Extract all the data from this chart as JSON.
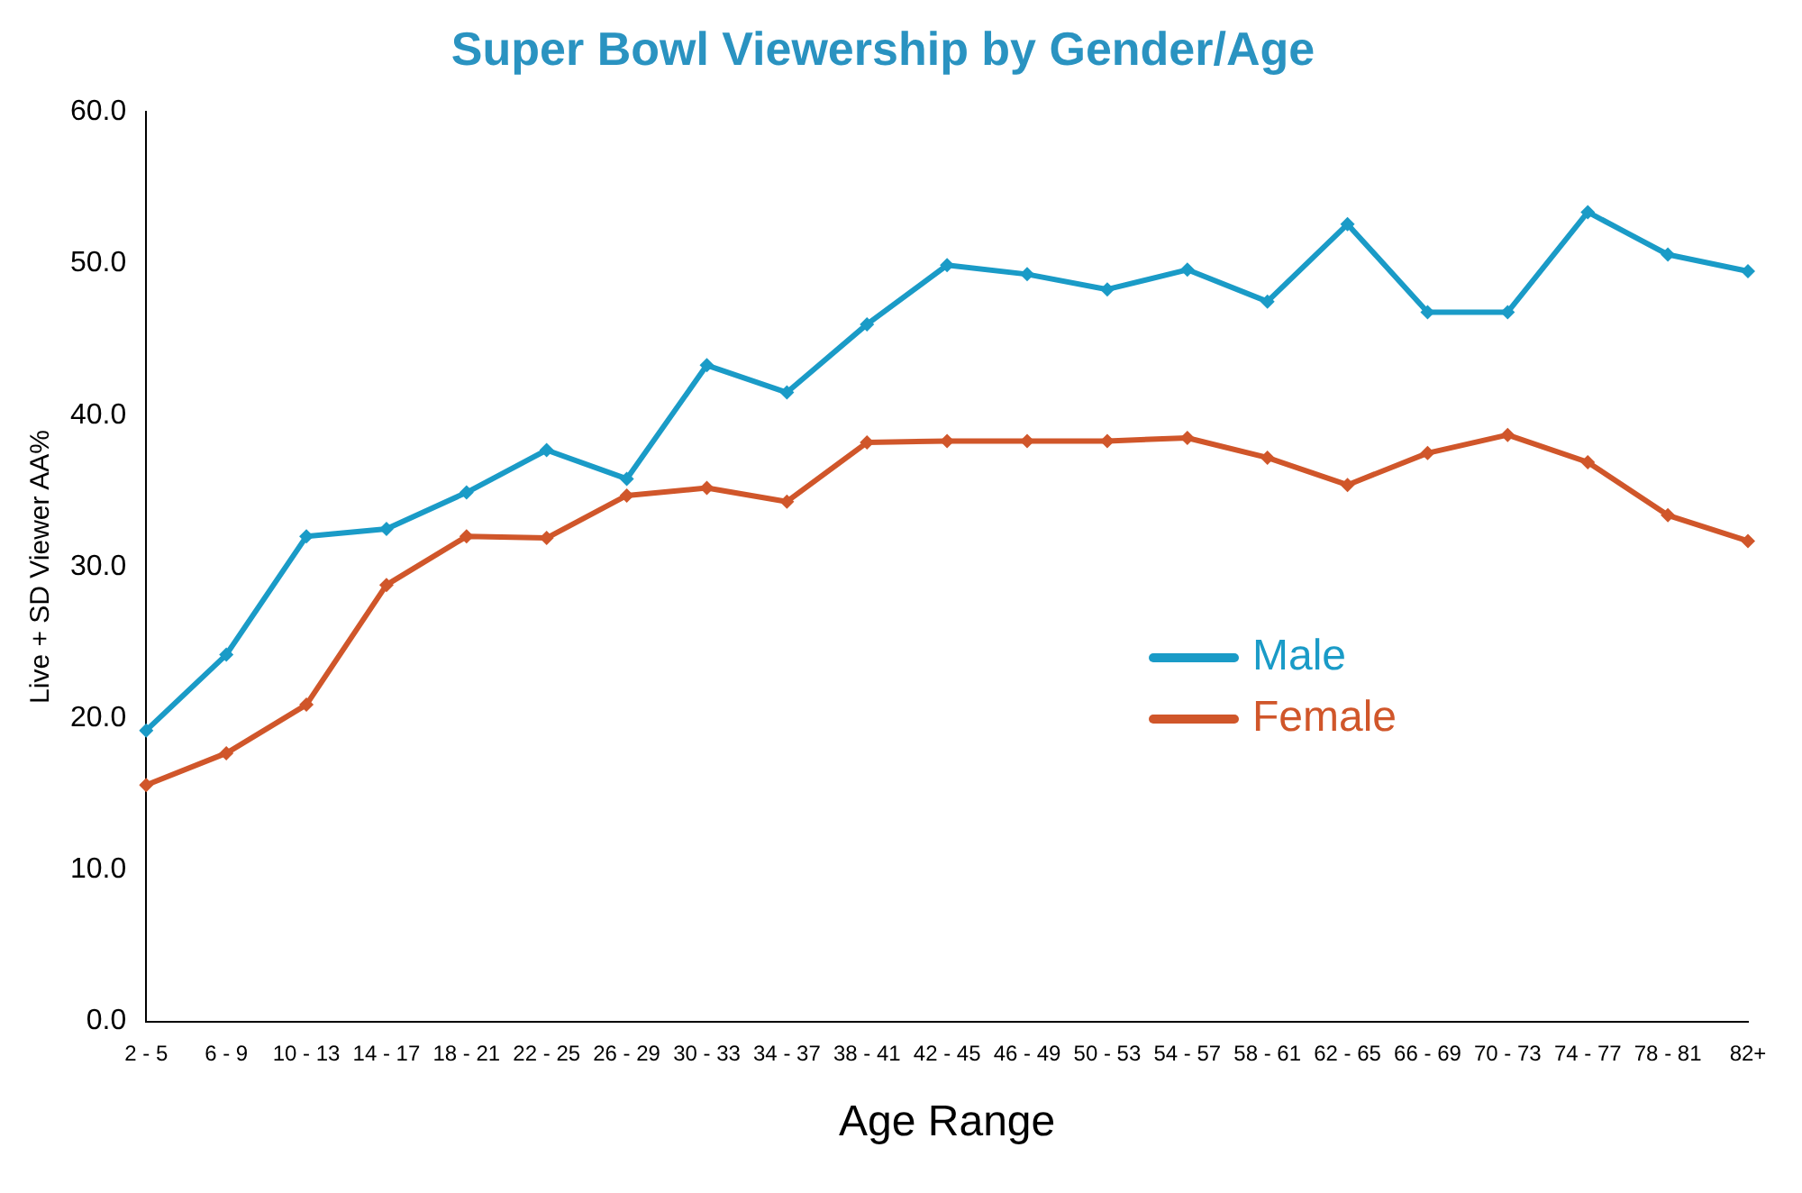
{
  "chart_data": {
    "type": "line",
    "title": "Super Bowl Viewership by Gender/Age",
    "xlabel": "Age Range",
    "ylabel": "Live + SD Viewer AA%",
    "categories": [
      "2 - 5",
      "6 - 9",
      "10 - 13",
      "14 - 17",
      "18 - 21",
      "22 - 25",
      "26 - 29",
      "30 - 33",
      "34 - 37",
      "38 - 41",
      "42 - 45",
      "46 - 49",
      "50 - 53",
      "54 - 57",
      "58 - 61",
      "62 - 65",
      "66 - 69",
      "70 - 73",
      "74 - 77",
      "78 - 81",
      "82+"
    ],
    "series": [
      {
        "name": "Male",
        "color": "#1a9bc7",
        "values": [
          19.2,
          24.2,
          32.0,
          32.5,
          34.9,
          37.7,
          35.8,
          43.3,
          41.5,
          46.0,
          49.9,
          49.3,
          48.3,
          49.6,
          47.5,
          52.6,
          46.8,
          46.8,
          53.4,
          50.6,
          49.5
        ]
      },
      {
        "name": "Female",
        "color": "#d0562a",
        "values": [
          15.6,
          17.7,
          20.9,
          28.8,
          32.0,
          31.9,
          34.7,
          35.2,
          34.3,
          38.2,
          38.3,
          38.3,
          38.3,
          38.5,
          37.2,
          35.4,
          37.5,
          38.7,
          36.9,
          33.4,
          31.7
        ]
      }
    ],
    "ylim": [
      0,
      60
    ],
    "yticks": [
      {
        "value": 0,
        "label": "0.0"
      },
      {
        "value": 10,
        "label": "10.0"
      },
      {
        "value": 20,
        "label": "20.0"
      },
      {
        "value": 30,
        "label": "30.0"
      },
      {
        "value": 40,
        "label": "40.0"
      },
      {
        "value": 50,
        "label": "50.0"
      },
      {
        "value": 60,
        "label": "60.0"
      }
    ],
    "legend": "right",
    "marker": "diamond",
    "line_style": "solid"
  }
}
